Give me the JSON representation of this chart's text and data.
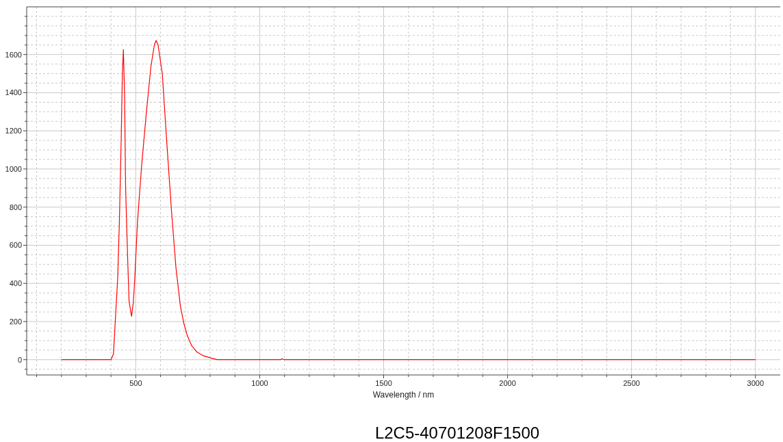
{
  "chart_data": {
    "type": "line",
    "xlabel": "Wavelength / nm",
    "annotations": [
      "L2C5-40701208F1500"
    ],
    "x": [
      200,
      400,
      410,
      427,
      434,
      441,
      446,
      450,
      455,
      459,
      467,
      473,
      483,
      490,
      496,
      507,
      524,
      542,
      561,
      575,
      582,
      590,
      607,
      625,
      644,
      662,
      680,
      694,
      708,
      725,
      745,
      770,
      800,
      828,
      1085,
      1090,
      1100,
      3000
    ],
    "series": [
      {
        "color": "#ff0000",
        "values": [
          0,
          0,
          30,
          424,
          725,
          1142,
          1500,
          1626,
          1381,
          904,
          544,
          305,
          227,
          300,
          424,
          725,
          1022,
          1285,
          1536,
          1650,
          1674,
          1650,
          1500,
          1142,
          783,
          484,
          281,
          190,
          126,
          75,
          42,
          22,
          10,
          0,
          0,
          5,
          0,
          0
        ]
      }
    ],
    "xlim": [
      60,
      3100
    ],
    "ylim": [
      -80,
      1850
    ],
    "xticks": [
      500,
      1000,
      1500,
      2000,
      2500,
      3000,
      {
        "value": 100,
        "label": null
      },
      {
        "value": 200,
        "label": null
      },
      {
        "value": 300,
        "label": null
      },
      {
        "value": 400,
        "label": null
      },
      {
        "value": 600,
        "label": null
      },
      {
        "value": 700,
        "label": null
      },
      {
        "value": 800,
        "label": null
      },
      {
        "value": 900,
        "label": null
      },
      {
        "value": 1100,
        "label": null
      },
      {
        "value": 1200,
        "label": null
      },
      {
        "value": 1300,
        "label": null
      },
      {
        "value": 1400,
        "label": null
      },
      {
        "value": 1600,
        "label": null
      },
      {
        "value": 1700,
        "label": null
      },
      {
        "value": 1800,
        "label": null
      },
      {
        "value": 1900,
        "label": null
      },
      {
        "value": 2100,
        "label": null
      },
      {
        "value": 2200,
        "label": null
      },
      {
        "value": 2300,
        "label": null
      },
      {
        "value": 2400,
        "label": null
      },
      {
        "value": 2600,
        "label": null
      },
      {
        "value": 2700,
        "label": null
      },
      {
        "value": 2800,
        "label": null
      },
      {
        "value": 2900,
        "label": null
      }
    ],
    "yticks": [
      0,
      200,
      400,
      600,
      800,
      1000,
      1200,
      1400,
      1600,
      {
        "value": -50,
        "label": null
      },
      {
        "value": 50,
        "label": null
      },
      {
        "value": 100,
        "label": null
      },
      {
        "value": 150,
        "label": null
      },
      {
        "value": 250,
        "label": null
      },
      {
        "value": 300,
        "label": null
      },
      {
        "value": 350,
        "label": null
      },
      {
        "value": 450,
        "label": null
      },
      {
        "value": 500,
        "label": null
      },
      {
        "value": 550,
        "label": null
      },
      {
        "value": 650,
        "label": null
      },
      {
        "value": 700,
        "label": null
      },
      {
        "value": 750,
        "label": null
      },
      {
        "value": 850,
        "label": null
      },
      {
        "value": 900,
        "label": null
      },
      {
        "value": 950,
        "label": null
      },
      {
        "value": 1050,
        "label": null
      },
      {
        "value": 1100,
        "label": null
      },
      {
        "value": 1150,
        "label": null
      },
      {
        "value": 1250,
        "label": null
      },
      {
        "value": 1300,
        "label": null
      },
      {
        "value": 1350,
        "label": null
      },
      {
        "value": 1450,
        "label": null
      },
      {
        "value": 1500,
        "label": null
      },
      {
        "value": 1550,
        "label": null
      },
      {
        "value": 1650,
        "label": null
      },
      {
        "value": 1700,
        "label": null
      },
      {
        "value": 1750,
        "label": null
      },
      {
        "value": 1800,
        "label": null
      }
    ],
    "grid": true,
    "marker": "none",
    "line_style": "solid"
  }
}
